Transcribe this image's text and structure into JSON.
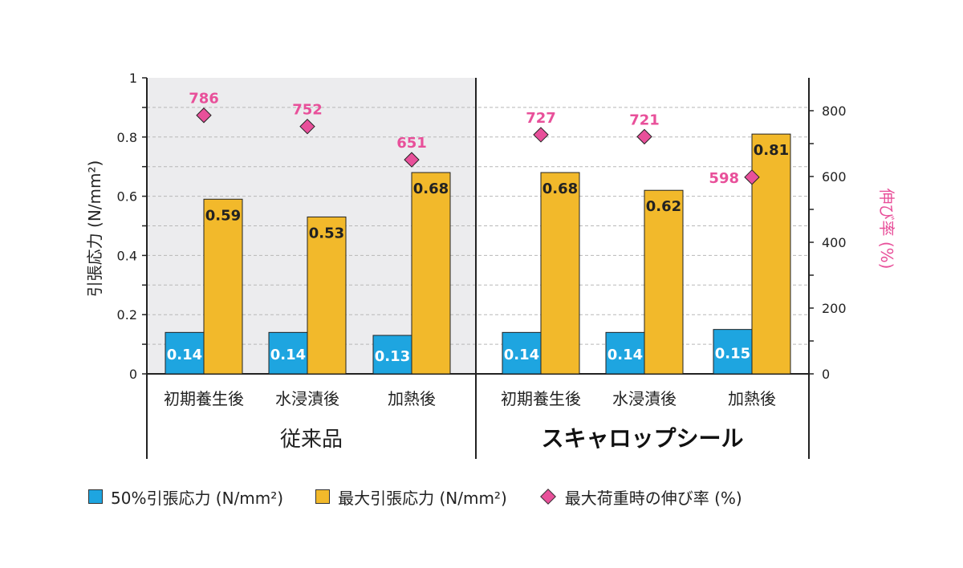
{
  "chart_data": {
    "type": "bar",
    "ylabel": "引張応力 (N/mm²)",
    "y2label": "伸び率 (%)",
    "ylim": [
      0,
      1
    ],
    "y2lim": [
      0,
      900
    ],
    "yticks": [
      "0",
      "0.2",
      "0.4",
      "0.6",
      "0.8",
      "1"
    ],
    "y2ticks": [
      "0",
      "200",
      "400",
      "600",
      "800"
    ],
    "grid": true,
    "groups": [
      {
        "label": "従来品",
        "shaded": true,
        "categories": [
          "初期養生後",
          "水浸漬後",
          "加熱後"
        ]
      },
      {
        "label": "スキャロップシール",
        "shaded": false,
        "categories": [
          "初期養生後",
          "水浸漬後",
          "加熱後"
        ]
      }
    ],
    "series": [
      {
        "name": "50%引張応力 (N/mm²)",
        "type": "bar",
        "axis": "left",
        "color": "#1ea5e0",
        "values": [
          0.14,
          0.14,
          0.13,
          0.14,
          0.14,
          0.15
        ],
        "labels": [
          "0.14",
          "0.14",
          "0.13",
          "0.14",
          "0.14",
          "0.15"
        ]
      },
      {
        "name": "最大引張応力 (N/mm²)",
        "type": "bar",
        "axis": "left",
        "color": "#f2b92b",
        "values": [
          0.59,
          0.53,
          0.68,
          0.68,
          0.62,
          0.81
        ],
        "labels": [
          "0.59",
          "0.53",
          "0.68",
          "0.68",
          "0.62",
          "0.81"
        ]
      },
      {
        "name": "最大荷重時の伸び率 (%)",
        "type": "scatter",
        "axis": "right",
        "color": "#e8509a",
        "values": [
          786,
          752,
          651,
          727,
          721,
          598
        ],
        "labels": [
          "786",
          "752",
          "651",
          "727",
          "721",
          "598"
        ]
      }
    ],
    "legend_position": "bottom"
  }
}
